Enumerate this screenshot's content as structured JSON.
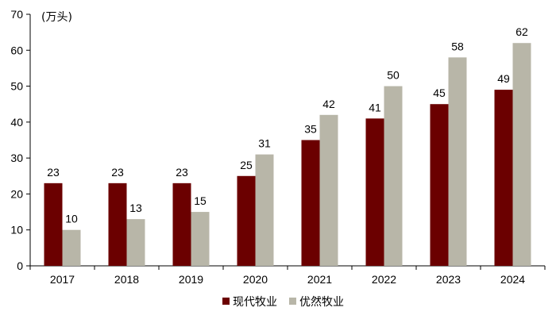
{
  "chart_data": {
    "type": "bar",
    "unit_label": "(万头)",
    "categories": [
      "2017",
      "2018",
      "2019",
      "2020",
      "2021",
      "2022",
      "2023",
      "2024"
    ],
    "series": [
      {
        "name": "现代牧业",
        "color": "#6b0000",
        "values": [
          23,
          23,
          23,
          25,
          35,
          41,
          45,
          49
        ]
      },
      {
        "name": "优然牧业",
        "color": "#b8b6a8",
        "values": [
          10,
          13,
          15,
          31,
          42,
          50,
          58,
          62
        ]
      }
    ],
    "ylim": [
      0,
      70
    ],
    "yticks": [
      0,
      10,
      20,
      30,
      40,
      50,
      60,
      70
    ],
    "grid": false,
    "legend_position": "bottom-center",
    "data_labels": true
  }
}
